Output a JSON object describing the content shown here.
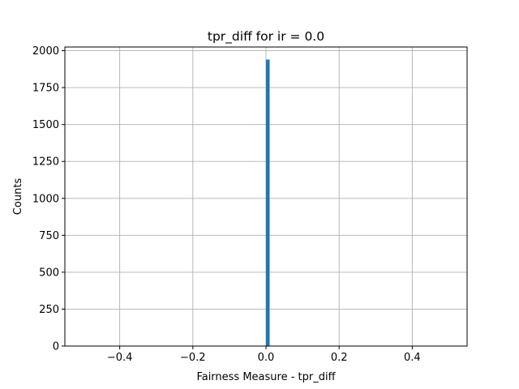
{
  "chart_data": {
    "type": "bar",
    "title": "tpr_diff for ir = 0.0",
    "xlabel": "Fairness Measure - tpr_diff",
    "ylabel": "Counts",
    "xlim": [
      -0.55,
      0.55
    ],
    "ylim": [
      0,
      2025
    ],
    "xticks": [
      -0.4,
      -0.2,
      0.0,
      0.2,
      0.4
    ],
    "xtick_labels": [
      "−0.4",
      "−0.2",
      "0.0",
      "0.2",
      "0.4"
    ],
    "yticks": [
      0,
      250,
      500,
      750,
      1000,
      1250,
      1500,
      1750,
      2000
    ],
    "ytick_labels": [
      "0",
      "250",
      "500",
      "750",
      "1000",
      "1250",
      "1500",
      "1750",
      "2000"
    ],
    "grid": true,
    "bar_color": "#1f77b4",
    "bins": [
      {
        "x_start": 0.0,
        "x_end": 0.01,
        "value": 1940
      }
    ]
  }
}
